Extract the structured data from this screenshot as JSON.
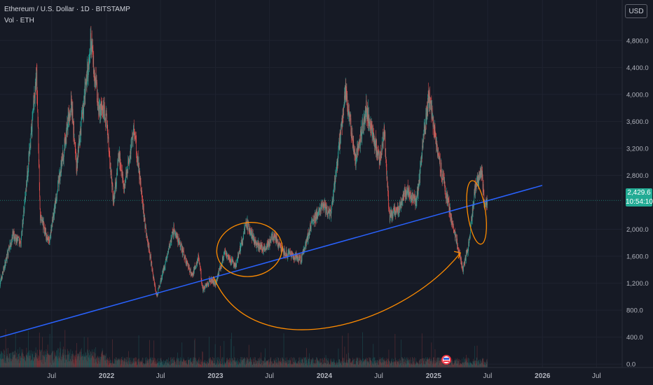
{
  "legend": {
    "symbol": "Ethereum / U.S. Dollar · 1D · BITSTAMP",
    "volume": "Vol · ETH"
  },
  "currency_button": "USD",
  "last_price": {
    "value": "2,429.6",
    "countdown": "10:54:10"
  },
  "colors": {
    "background": "#161a25",
    "up": "#26a69a",
    "down": "#ef5350",
    "trendline": "#2962ff",
    "annotation": "#ff8c00",
    "grid": "#1f2330",
    "axis_text": "#b2b5be",
    "price_tag": "#22ab94"
  },
  "chart_data": {
    "type": "candlestick",
    "symbol": "ETH/USD",
    "timeframe": "1D",
    "exchange": "BITSTAMP",
    "y_ticks": [
      4800,
      4400,
      4000,
      3600,
      3200,
      2800,
      2000,
      1600,
      1200,
      800,
      400,
      0
    ],
    "y_tick_labels": [
      "4,800.0",
      "4,400.0",
      "4,000.0",
      "3,600.0",
      "3,200.0",
      "2,800.0",
      "2,000.0",
      "1,600.0",
      "1,200.0",
      "800.0",
      "400.0",
      "0.0"
    ],
    "ylim": [
      -50,
      5400
    ],
    "x_ticks": [
      "Jul",
      "2022",
      "Jul",
      "2023",
      "Jul",
      "2024",
      "Jul",
      "2025",
      "Jul",
      "2026",
      "Jul"
    ],
    "x_tick_dates": [
      "2021-07",
      "2022-01",
      "2022-07",
      "2023-01",
      "2023-07",
      "2024-01",
      "2024-07",
      "2025-01",
      "2025-07",
      "2026-01",
      "2026-07"
    ],
    "xlim": [
      "2021-01-09",
      "2026-09-25"
    ],
    "price_path": [
      [
        "2021-01-09",
        1200
      ],
      [
        "2021-02-20",
        1900
      ],
      [
        "2021-03-20",
        1800
      ],
      [
        "2021-05-12",
        4300
      ],
      [
        "2021-05-24",
        2200
      ],
      [
        "2021-06-22",
        1800
      ],
      [
        "2021-08-12",
        3200
      ],
      [
        "2021-09-05",
        3900
      ],
      [
        "2021-09-22",
        2900
      ],
      [
        "2021-11-10",
        4800
      ],
      [
        "2021-12-05",
        3800
      ],
      [
        "2021-12-31",
        3700
      ],
      [
        "2022-01-24",
        2400
      ],
      [
        "2022-02-12",
        3100
      ],
      [
        "2022-03-01",
        2600
      ],
      [
        "2022-04-03",
        3500
      ],
      [
        "2022-05-12",
        2000
      ],
      [
        "2022-06-18",
        1000
      ],
      [
        "2022-07-28",
        1700
      ],
      [
        "2022-08-14",
        2000
      ],
      [
        "2022-09-10",
        1700
      ],
      [
        "2022-10-15",
        1300
      ],
      [
        "2022-11-05",
        1600
      ],
      [
        "2022-11-20",
        1100
      ],
      [
        "2022-12-15",
        1250
      ],
      [
        "2023-01-01",
        1200
      ],
      [
        "2023-02-01",
        1650
      ],
      [
        "2023-03-10",
        1450
      ],
      [
        "2023-04-15",
        2100
      ],
      [
        "2023-05-15",
        1800
      ],
      [
        "2023-06-15",
        1700
      ],
      [
        "2023-07-15",
        1900
      ],
      [
        "2023-08-20",
        1650
      ],
      [
        "2023-10-15",
        1550
      ],
      [
        "2023-11-20",
        2100
      ],
      [
        "2023-12-28",
        2350
      ],
      [
        "2024-01-23",
        2200
      ],
      [
        "2024-03-12",
        4050
      ],
      [
        "2024-04-15",
        3000
      ],
      [
        "2024-05-20",
        3800
      ],
      [
        "2024-07-05",
        3000
      ],
      [
        "2024-07-20",
        3500
      ],
      [
        "2024-08-05",
        2200
      ],
      [
        "2024-09-06",
        2300
      ],
      [
        "2024-10-01",
        2600
      ],
      [
        "2024-11-05",
        2400
      ],
      [
        "2024-12-16",
        4000
      ],
      [
        "2025-01-10",
        3300
      ],
      [
        "2025-02-03",
        2700
      ],
      [
        "2025-03-10",
        2000
      ],
      [
        "2025-04-09",
        1400
      ],
      [
        "2025-04-30",
        1800
      ],
      [
        "2025-05-20",
        2600
      ],
      [
        "2025-06-11",
        2850
      ],
      [
        "2025-06-22",
        2300
      ],
      [
        "2025-06-30",
        2429.6
      ]
    ],
    "trendline": {
      "start": [
        "2021-01-09",
        400
      ],
      "end": [
        "2025-12-31",
        2650
      ]
    },
    "annotations": [
      {
        "type": "ellipse",
        "center": [
          "2023-04-25",
          1700
        ],
        "span_days": [
          220,
          0
        ],
        "span_price": [
          0,
          800
        ]
      },
      {
        "type": "ellipse",
        "center": [
          "2025-05-25",
          2250
        ],
        "span_days": [
          60,
          0
        ],
        "span_price": [
          0,
          950
        ]
      },
      {
        "type": "arrow",
        "from": [
          "2022-12-25",
          1300
        ],
        "to": [
          "2025-04-01",
          1650
        ]
      }
    ],
    "volume_series": "Vol · ETH"
  }
}
